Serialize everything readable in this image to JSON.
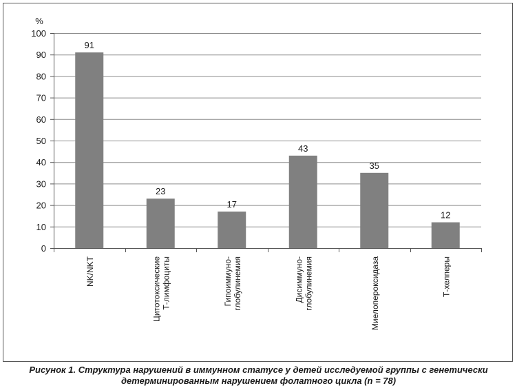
{
  "chart_data": {
    "type": "bar",
    "unit_label": "%",
    "categories": [
      [
        "NK/NKT"
      ],
      [
        "Цитотоксические",
        "Т-лимфоциты"
      ],
      [
        "Гипоиммуно-",
        "глобулинемия"
      ],
      [
        "Дисиммуно-",
        "глобулинемия"
      ],
      [
        "Миелопероксидаза"
      ],
      [
        "Т-хелперы"
      ]
    ],
    "values": [
      91,
      23,
      17,
      43,
      35,
      12
    ],
    "data_labels": [
      "91",
      "23",
      "17",
      "43",
      "35",
      "12"
    ],
    "ylim": [
      0,
      100
    ],
    "yticks": [
      0,
      10,
      20,
      30,
      40,
      50,
      60,
      70,
      80,
      90,
      100
    ],
    "grid": true,
    "legend": "none",
    "bar_color": "#808080",
    "grid_color": "#8c8c8c"
  },
  "caption": {
    "line1": "Рисунок 1. Структура нарушений в иммунном статусе у детей исследуемой группы с генетически",
    "line2": "детерминированным нарушением фолатного цикла (n = 78)"
  }
}
